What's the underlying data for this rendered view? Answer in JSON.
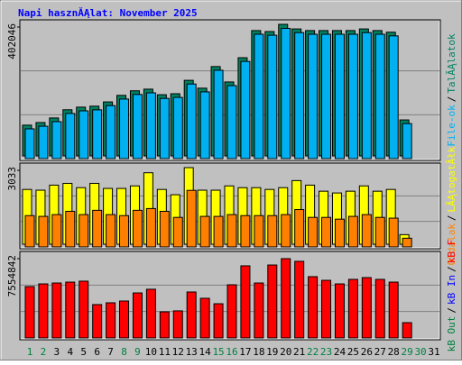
{
  "title": "Napi hasznĂĄlat: November 2025",
  "legend_separator": "/",
  "chart_data": [
    {
      "type": "bar",
      "ylim": [
        0,
        402046
      ],
      "yticks": [
        402046
      ],
      "series": [
        {
          "name": "TalĂĄlatok",
          "color": "#008060",
          "values": [
            94000,
            102000,
            116000,
            141000,
            149000,
            152000,
            165000,
            185000,
            199000,
            204000,
            187000,
            190000,
            231000,
            207000,
            273000,
            226000,
            300000,
            383000,
            380000,
            402046,
            388000,
            383000,
            383000,
            383000,
            383000,
            388000,
            383000,
            378000,
            110000,
            null,
            null
          ]
        },
        {
          "name": "File-ok",
          "color": "#00b0f0",
          "values": [
            91000,
            99000,
            113000,
            138000,
            146000,
            149000,
            162000,
            182000,
            196000,
            201000,
            184000,
            187000,
            228000,
            204000,
            270000,
            223000,
            297000,
            380000,
            377000,
            398000,
            385000,
            380000,
            380000,
            380000,
            380000,
            385000,
            380000,
            375000,
            107000,
            null,
            null
          ]
        }
      ]
    },
    {
      "type": "bar",
      "ylim": [
        0,
        3033
      ],
      "yticks": [
        3033
      ],
      "series": [
        {
          "name": "LĂĄtogatĂłk",
          "color": "#ffff00",
          "values": [
            2170,
            2140,
            2340,
            2410,
            2240,
            2410,
            2210,
            2210,
            2310,
            2830,
            2170,
            1960,
            3033,
            2140,
            2140,
            2310,
            2240,
            2240,
            2170,
            2240,
            2520,
            2340,
            2100,
            2030,
            2100,
            2310,
            2100,
            2170,
            380,
            null,
            null
          ]
        },
        {
          "name": "Oldalak",
          "color": "#ff8000",
          "values": [
            1240,
            1210,
            1280,
            1410,
            1280,
            1450,
            1280,
            1240,
            1450,
            1520,
            1410,
            1170,
            2240,
            1210,
            1210,
            1280,
            1240,
            1240,
            1240,
            1280,
            1480,
            1170,
            1170,
            1100,
            1210,
            1280,
            1170,
            1140,
            345,
            null,
            null
          ]
        }
      ]
    },
    {
      "type": "bar",
      "ylim": [
        0,
        7554842
      ],
      "yticks": [
        7554842
      ],
      "categories": [
        "1",
        "2",
        "3",
        "4",
        "5",
        "6",
        "7",
        "8",
        "9",
        "10",
        "11",
        "12",
        "13",
        "14",
        "15",
        "16",
        "17",
        "18",
        "19",
        "20",
        "21",
        "22",
        "23",
        "24",
        "25",
        "26",
        "27",
        "28",
        "29",
        "30",
        "31"
      ],
      "category_colors": [
        "#008040",
        "#008040",
        "#000000",
        "#000000",
        "#000000",
        "#000000",
        "#000000",
        "#008040",
        "#008040",
        "#000000",
        "#000000",
        "#000000",
        "#000000",
        "#000000",
        "#008040",
        "#008040",
        "#000000",
        "#000000",
        "#000000",
        "#000000",
        "#000000",
        "#008040",
        "#008040",
        "#000000",
        "#000000",
        "#000000",
        "#000000",
        "#000000",
        "#008040",
        "#008040",
        "#000000"
      ],
      "series": [
        {
          "name": "kB F",
          "color": "#ff0000",
          "values": [
            4895000,
            5150000,
            5235000,
            5320000,
            5410000,
            3180000,
            3350000,
            3520000,
            4290000,
            4640000,
            2490000,
            2580000,
            4380000,
            3780000,
            3260000,
            5065000,
            6870000,
            5235000,
            6950000,
            7554842,
            7300000,
            5840000,
            5490000,
            5150000,
            5580000,
            5750000,
            5580000,
            5320000,
            1460000,
            null,
            null
          ]
        }
      ],
      "extra_legend": [
        {
          "name": "kB In",
          "color": "#0000ff"
        },
        {
          "name": "kB Out",
          "color": "#008040"
        }
      ]
    }
  ]
}
